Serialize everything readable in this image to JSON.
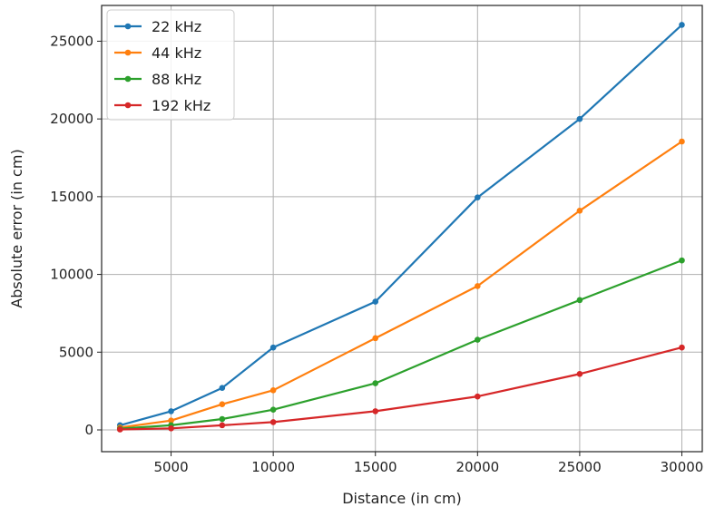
{
  "chart_data": {
    "type": "line",
    "title": "",
    "xlabel": "Distance (in cm)",
    "ylabel": "Absolute error (in cm)",
    "xlim": [
      1600,
      31000
    ],
    "ylim": [
      -1400,
      27300
    ],
    "xticks": [
      5000,
      10000,
      15000,
      20000,
      25000,
      30000
    ],
    "yticks": [
      0,
      5000,
      10000,
      15000,
      20000,
      25000
    ],
    "grid": true,
    "legend_position": "top-left",
    "x": [
      2500,
      5000,
      7500,
      10000,
      15000,
      20000,
      25000,
      30000
    ],
    "series": [
      {
        "name": "22 kHz",
        "color": "#1f77b4",
        "values": [
          300,
          1200,
          2700,
          5300,
          8250,
          14950,
          20000,
          26050
        ]
      },
      {
        "name": "44 kHz",
        "color": "#ff7f0e",
        "values": [
          150,
          600,
          1650,
          2550,
          5900,
          9250,
          14100,
          18550
        ]
      },
      {
        "name": "88 kHz",
        "color": "#2ca02c",
        "values": [
          80,
          300,
          700,
          1300,
          3000,
          5800,
          8350,
          10900
        ]
      },
      {
        "name": "192 kHz",
        "color": "#d62728",
        "values": [
          30,
          100,
          300,
          500,
          1200,
          2150,
          3600,
          5300
        ]
      }
    ]
  }
}
